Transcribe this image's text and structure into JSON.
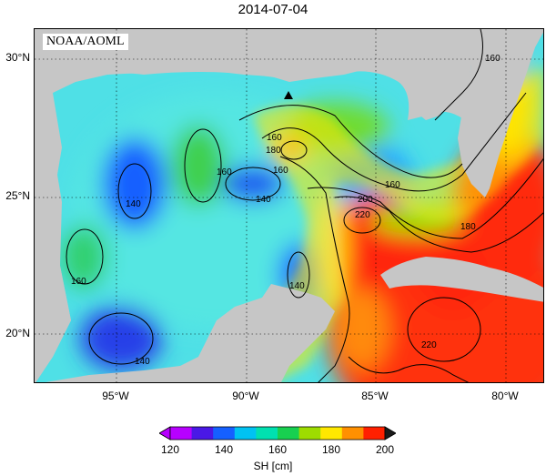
{
  "header": {
    "date": "2014-07-04"
  },
  "credit": "NOAA/AOML",
  "map": {
    "land_color": "#c6c6c6",
    "lat_ticks": [
      "30°N",
      "25°N",
      "20°N"
    ],
    "lon_ticks": [
      "95°W",
      "90°W",
      "85°W",
      "80°W"
    ],
    "contour_labels": [
      "160",
      "140",
      "160",
      "140",
      "140",
      "160",
      "140",
      "180",
      "160",
      "160",
      "200",
      "220",
      "180",
      "220",
      "160"
    ],
    "marker": "triangle"
  },
  "colorbar": {
    "title": "SH [cm]",
    "ticks": [
      "120",
      "140",
      "160",
      "180",
      "200"
    ],
    "colors": [
      "#b700ff",
      "#4a18e6",
      "#1560ff",
      "#00c2f2",
      "#00e0b0",
      "#18d050",
      "#9edc00",
      "#ffe800",
      "#ff9000",
      "#ff2000"
    ]
  }
}
